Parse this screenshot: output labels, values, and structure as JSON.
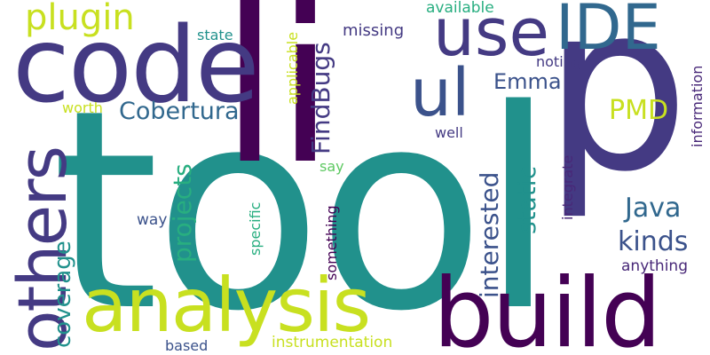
{
  "palette": {
    "deep_purple": "#440154",
    "indigo": "#3b528b",
    "slate_blue": "#443a83",
    "steel_blue": "#31688e",
    "teal": "#21918c",
    "sea_green": "#28ae80",
    "mint": "#5ec962",
    "lime": "#addc30",
    "yellow_green": "#c8e020",
    "plum": "#482878"
  },
  "words": [
    {
      "text": "tool",
      "color": "teal"
    },
    {
      "text": "li",
      "color": "deep_purple"
    },
    {
      "text": "p",
      "color": "slate_blue"
    },
    {
      "text": "code",
      "color": "slate_blue"
    },
    {
      "text": "build",
      "color": "deep_purple"
    },
    {
      "text": "analysis",
      "color": "yellow_green"
    },
    {
      "text": "others",
      "color": "slate_blue"
    },
    {
      "text": "use",
      "color": "slate_blue"
    },
    {
      "text": "IDE",
      "color": "steel_blue"
    },
    {
      "text": "ul",
      "color": "indigo"
    },
    {
      "text": "plugin",
      "color": "yellow_green"
    },
    {
      "text": "FindBugs",
      "color": "slate_blue"
    },
    {
      "text": "Cobertura",
      "color": "steel_blue"
    },
    {
      "text": "PMD",
      "color": "yellow_green"
    },
    {
      "text": "Emma",
      "color": "indigo"
    },
    {
      "text": "Java",
      "color": "steel_blue"
    },
    {
      "text": "kinds",
      "color": "indigo"
    },
    {
      "text": "interested",
      "color": "indigo"
    },
    {
      "text": "static",
      "color": "teal"
    },
    {
      "text": "projects",
      "color": "sea_green"
    },
    {
      "text": "coverage",
      "color": "teal"
    },
    {
      "text": "missing",
      "color": "slate_blue"
    },
    {
      "text": "available",
      "color": "sea_green"
    },
    {
      "text": "state",
      "color": "teal"
    },
    {
      "text": "applicable",
      "color": "yellow_green"
    },
    {
      "text": "noting",
      "color": "slate_blue"
    },
    {
      "text": "worth",
      "color": "yellow_green"
    },
    {
      "text": "well",
      "color": "slate_blue"
    },
    {
      "text": "information",
      "color": "plum"
    },
    {
      "text": "integrate",
      "color": "plum"
    },
    {
      "text": "say",
      "color": "mint"
    },
    {
      "text": "specific",
      "color": "sea_green"
    },
    {
      "text": "something",
      "color": "deep_purple"
    },
    {
      "text": "way",
      "color": "indigo"
    },
    {
      "text": "anything",
      "color": "plum"
    },
    {
      "text": "instrumentation",
      "color": "yellow_green"
    },
    {
      "text": "based",
      "color": "indigo"
    }
  ]
}
